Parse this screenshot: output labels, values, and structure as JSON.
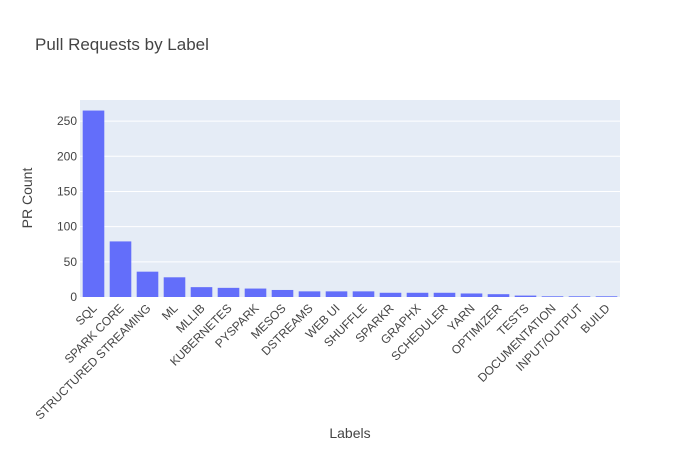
{
  "chart_data": {
    "type": "bar",
    "title": "Pull Requests by Label",
    "xlabel": "Labels",
    "ylabel": "PR Count",
    "categories": [
      "SQL",
      "SPARK CORE",
      "STRUCTURED STREAMING",
      "ML",
      "MLLIB",
      "KUBERNETES",
      "PYSPARK",
      "MESOS",
      "DSTREAMS",
      "WEB UI",
      "SHUFFLE",
      "SPARKR",
      "GRAPHX",
      "SCHEDULER",
      "YARN",
      "OPTIMIZER",
      "TESTS",
      "DOCUMENTATION",
      "INPUT/OUTPUT",
      "BUILD"
    ],
    "values": [
      265,
      79,
      36,
      28,
      14,
      13,
      12,
      10,
      8,
      8,
      8,
      6,
      6,
      6,
      5,
      4,
      2,
      1,
      1,
      1
    ],
    "ylim": [
      0,
      280
    ],
    "yticks": [
      0,
      50,
      100,
      150,
      200,
      250
    ],
    "bar_color": "#636efa",
    "plot_bg": "#e5ecf6",
    "grid": true,
    "legend": "none"
  }
}
